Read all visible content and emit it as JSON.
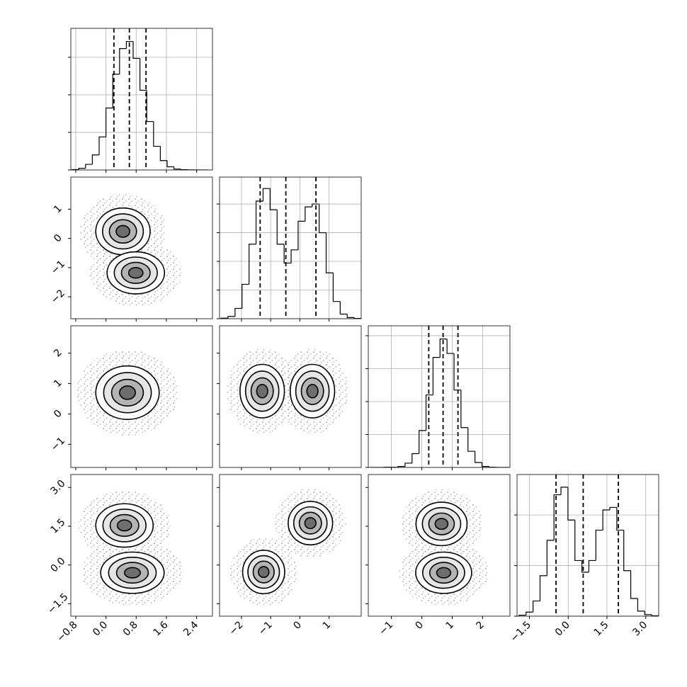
{
  "chart_data": {
    "type": "corner",
    "grid": true,
    "color": "#000000",
    "params": [
      {
        "lim": [
          -0.93,
          2.82
        ],
        "ticks": [
          {
            "value": -0.8,
            "label": "−0.8"
          },
          {
            "value": 0,
            "label": "0.0"
          },
          0.8,
          1.6,
          2.4
        ]
      },
      {
        "lim": [
          -2.75,
          2.1
        ],
        "ticks": [
          {
            "value": -2,
            "label": "−2"
          },
          {
            "value": -1,
            "label": "−1"
          },
          0,
          1
        ]
      },
      {
        "lim": [
          -1.76,
          2.9
        ],
        "ticks": [
          {
            "value": -1,
            "label": "−1"
          },
          0,
          1,
          2
        ]
      },
      {
        "lim": [
          -1.98,
          3.5
        ],
        "ticks": [
          {
            "value": -1.5,
            "label": "−1.5"
          },
          {
            "value": 0,
            "label": "0.0"
          },
          1.5,
          {
            "value": 3,
            "label": "3.0"
          }
        ]
      }
    ],
    "histograms": [
      {
        "bins": [
          -0.9,
          -0.72,
          -0.54,
          -0.36,
          -0.18,
          0,
          0.18,
          0.36,
          0.54,
          0.72,
          0.9,
          1.08,
          1.26,
          1.44,
          1.62,
          1.8,
          1.98,
          2.16,
          2.34,
          2.52,
          2.7
        ],
        "counts": [
          10,
          45,
          150,
          400,
          880,
          1650,
          2550,
          3230,
          3420,
          2970,
          2120,
          1290,
          630,
          250,
          85,
          25,
          8,
          2,
          0,
          0
        ],
        "ylim": [
          0,
          3770
        ],
        "yticks": [
          0,
          1000,
          2000,
          3000
        ],
        "quantiles": [
          0.21,
          0.62,
          1.06
        ]
      },
      {
        "bins": [
          -2.7,
          -2.46,
          -2.22,
          -1.98,
          -1.74,
          -1.5,
          -1.26,
          -1.02,
          -0.78,
          -0.54,
          -0.3,
          -0.06,
          0.18,
          0.42,
          0.66,
          0.9,
          1.14,
          1.38,
          1.62,
          1.86,
          2.1
        ],
        "counts": [
          10,
          40,
          180,
          600,
          1300,
          2050,
          2270,
          1900,
          1300,
          970,
          1200,
          1700,
          1950,
          2000,
          1500,
          800,
          300,
          80,
          20,
          5
        ],
        "ylim": [
          0,
          2470
        ],
        "yticks": [
          0,
          500,
          1000,
          1500,
          2000
        ],
        "quantiles": [
          -1.36,
          -0.48,
          0.55
        ]
      },
      {
        "bins": [
          -1.7,
          -1.47,
          -1.24,
          -1.01,
          -0.78,
          -0.55,
          -0.32,
          -0.09,
          0.14,
          0.37,
          0.6,
          0.83,
          1.06,
          1.29,
          1.52,
          1.75,
          1.98,
          2.21,
          2.44,
          2.67,
          2.9
        ],
        "counts": [
          0,
          0,
          5,
          5,
          30,
          130,
          420,
          1120,
          2200,
          3340,
          3900,
          3460,
          2350,
          1210,
          490,
          150,
          30,
          6,
          0,
          0
        ],
        "ylim": [
          0,
          4300
        ],
        "yticks": [
          0,
          1000,
          2000,
          3000,
          4000
        ],
        "quantiles": [
          0.23,
          0.7,
          1.19
        ]
      },
      {
        "bins": [
          -1.9,
          -1.63,
          -1.36,
          -1.09,
          -0.82,
          -0.55,
          -0.28,
          -0.01,
          0.26,
          0.53,
          0.8,
          1.07,
          1.34,
          1.61,
          1.88,
          2.15,
          2.42,
          2.69,
          2.96,
          3.23,
          3.5
        ],
        "counts": [
          20,
          80,
          300,
          800,
          1500,
          2400,
          2550,
          1900,
          1100,
          870,
          1100,
          1700,
          2100,
          2150,
          1700,
          900,
          350,
          100,
          30,
          8
        ],
        "ylim": [
          0,
          2800
        ],
        "yticks": [
          0,
          1000,
          2000
        ],
        "quantiles": [
          -0.47,
          0.58,
          1.94
        ]
      }
    ],
    "densities": [
      {
        "modes": [
          {
            "x": 0.45,
            "y": 0.24,
            "sx": 0.36,
            "sy": 0.4
          },
          {
            "x": 0.79,
            "y": -1.18,
            "sx": 0.38,
            "sy": 0.36
          }
        ]
      },
      {
        "modes": [
          {
            "x": 0.57,
            "y": 0.7,
            "sx": 0.42,
            "sy": 0.44
          }
        ]
      },
      {
        "modes": [
          {
            "x": -1.29,
            "y": 0.75,
            "sx": 0.38,
            "sy": 0.44
          },
          {
            "x": 0.43,
            "y": 0.75,
            "sx": 0.38,
            "sy": 0.44
          }
        ]
      },
      {
        "modes": [
          {
            "x": 0.49,
            "y": 1.53,
            "sx": 0.38,
            "sy": 0.42
          },
          {
            "x": 0.7,
            "y": -0.3,
            "sx": 0.42,
            "sy": 0.4
          }
        ]
      },
      {
        "modes": [
          {
            "x": -1.24,
            "y": -0.27,
            "sx": 0.36,
            "sy": 0.42
          },
          {
            "x": 0.36,
            "y": 1.62,
            "sx": 0.38,
            "sy": 0.42
          }
        ]
      },
      {
        "modes": [
          {
            "x": 0.65,
            "y": 1.59,
            "sx": 0.42,
            "sy": 0.42
          },
          {
            "x": 0.72,
            "y": -0.3,
            "sx": 0.46,
            "sy": 0.4
          }
        ]
      }
    ]
  }
}
